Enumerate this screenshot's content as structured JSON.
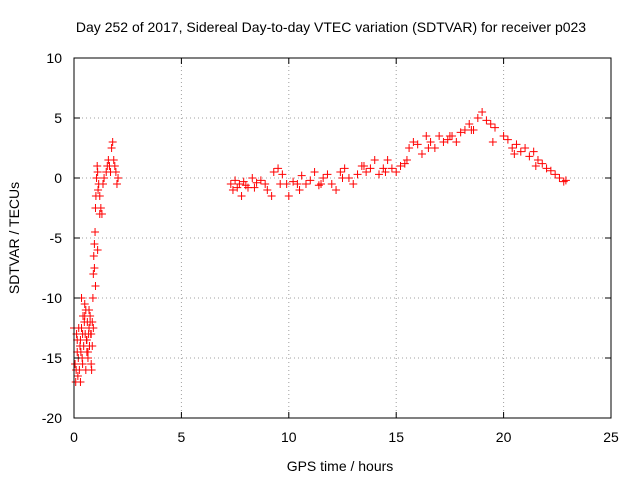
{
  "chart_data": {
    "type": "scatter",
    "title": "Day 252 of 2017, Sidereal Day-to-day VTEC variation (SDTVAR) for receiver p023",
    "xlabel": "GPS time / hours",
    "ylabel": "SDTVAR / TECUs",
    "xlim": [
      0,
      25
    ],
    "ylim": [
      -20,
      10
    ],
    "xticks": [
      0,
      5,
      10,
      15,
      20,
      25
    ],
    "yticks": [
      -20,
      -15,
      -10,
      -5,
      0,
      5,
      10
    ],
    "grid": true,
    "marker": "+",
    "color": "#ff0000",
    "series": [
      {
        "name": "SDTVAR p023",
        "x": [
          0.0,
          0.05,
          0.08,
          0.1,
          0.12,
          0.15,
          0.18,
          0.2,
          0.22,
          0.25,
          0.28,
          0.3,
          0.32,
          0.35,
          0.38,
          0.4,
          0.42,
          0.45,
          0.48,
          0.5,
          0.52,
          0.55,
          0.58,
          0.6,
          0.62,
          0.65,
          0.68,
          0.7,
          0.72,
          0.75,
          0.78,
          0.8,
          0.82,
          0.85,
          0.88,
          0.9,
          0.92,
          0.95,
          0.98,
          1.0,
          1.02,
          1.05,
          1.08,
          1.1,
          1.12,
          1.15,
          1.2,
          1.25,
          1.3,
          1.35,
          1.4,
          1.5,
          1.55,
          1.6,
          1.65,
          1.7,
          1.75,
          1.8,
          1.85,
          1.9,
          1.95,
          2.0,
          2.05,
          0.35,
          0.5,
          0.6,
          0.75,
          0.85,
          0.9,
          1.0,
          1.1,
          1.2,
          0.95,
          0.4,
          0.55,
          0.65,
          0.8,
          0.3,
          0.15,
          0.7,
          7.3,
          7.4,
          7.5,
          7.6,
          7.7,
          7.8,
          7.9,
          8.0,
          8.1,
          8.3,
          8.5,
          8.7,
          8.9,
          9.0,
          9.2,
          9.3,
          9.5,
          9.7,
          9.9,
          10.0,
          10.2,
          10.4,
          10.6,
          10.8,
          11.0,
          11.2,
          11.4,
          11.6,
          11.8,
          12.0,
          12.2,
          12.4,
          12.6,
          12.8,
          13.0,
          13.2,
          13.4,
          13.6,
          13.8,
          14.0,
          14.2,
          14.4,
          14.6,
          14.8,
          15.0,
          15.2,
          15.4,
          15.6,
          15.8,
          16.0,
          16.2,
          16.4,
          16.6,
          16.8,
          17.0,
          17.2,
          17.4,
          17.6,
          17.8,
          18.0,
          18.2,
          18.4,
          18.6,
          18.8,
          19.0,
          19.2,
          19.4,
          19.6,
          20.0,
          20.2,
          20.4,
          20.6,
          20.8,
          21.0,
          21.2,
          21.4,
          21.6,
          21.8,
          22.0,
          22.2,
          22.4,
          22.6,
          22.8,
          22.9,
          8.4,
          9.6,
          10.5,
          11.5,
          12.5,
          13.5,
          14.5,
          15.5,
          16.5,
          17.5,
          18.5,
          19.5,
          20.5,
          21.5
        ],
        "y": [
          -12.5,
          -15.5,
          -17,
          -16,
          -13,
          -14.5,
          -16.5,
          -15,
          -12.5,
          -16,
          -14,
          -13.5,
          -14.5,
          -12.5,
          -15,
          -13,
          -11.5,
          -14,
          -12,
          -10.5,
          -13,
          -11,
          -13.5,
          -14.5,
          -12,
          -15,
          -13,
          -12.5,
          -14,
          -11.5,
          -13,
          -15.5,
          -16,
          -12,
          -10,
          -8,
          -6.5,
          -5.5,
          -4.5,
          -2.5,
          -1.5,
          0,
          1,
          0.5,
          -1,
          -0.5,
          -1.5,
          -2.5,
          -3,
          -0.5,
          0,
          0.5,
          1,
          1.5,
          1,
          0.5,
          2.5,
          3,
          1.5,
          1,
          0.5,
          -0.5,
          0,
          -10,
          -11.5,
          -13.5,
          -12,
          -14,
          -12.5,
          -9,
          -6,
          -3,
          -7.5,
          -15.5,
          -16,
          -14.5,
          -13,
          -17,
          -13.5,
          -11,
          -0.5,
          -1,
          -0.2,
          -0.8,
          -0.5,
          -1.5,
          -0.3,
          -0.6,
          -0.8,
          0.0,
          -0.4,
          -0.2,
          -0.5,
          -1,
          -1.5,
          0.5,
          0.8,
          0.3,
          -0.5,
          -1.5,
          -0.3,
          -0.5,
          0.2,
          -0.5,
          -0.2,
          0.5,
          -0.6,
          0.0,
          0.3,
          -0.5,
          -1,
          0.5,
          0.8,
          0.0,
          -0.5,
          0.3,
          1,
          0.5,
          0.8,
          1.5,
          0.3,
          0.8,
          1.5,
          0.8,
          0.5,
          1,
          1.2,
          2.5,
          3,
          2.8,
          2,
          3.5,
          3,
          2.5,
          3.5,
          3,
          3.2,
          3.5,
          3,
          3.8,
          4,
          4.5,
          4,
          5,
          5.5,
          4.8,
          4.5,
          4.2,
          3.5,
          3.2,
          2.5,
          2.8,
          2.2,
          2.5,
          1.8,
          2.2,
          1.5,
          1.2,
          0.8,
          0.6,
          0.3,
          0.0,
          -0.3,
          -0.2,
          -0.8,
          -0.5,
          -1,
          -0.5,
          0,
          1,
          0.5,
          1.5,
          2.5,
          3.5,
          4,
          3,
          2,
          1
        ]
      }
    ]
  }
}
